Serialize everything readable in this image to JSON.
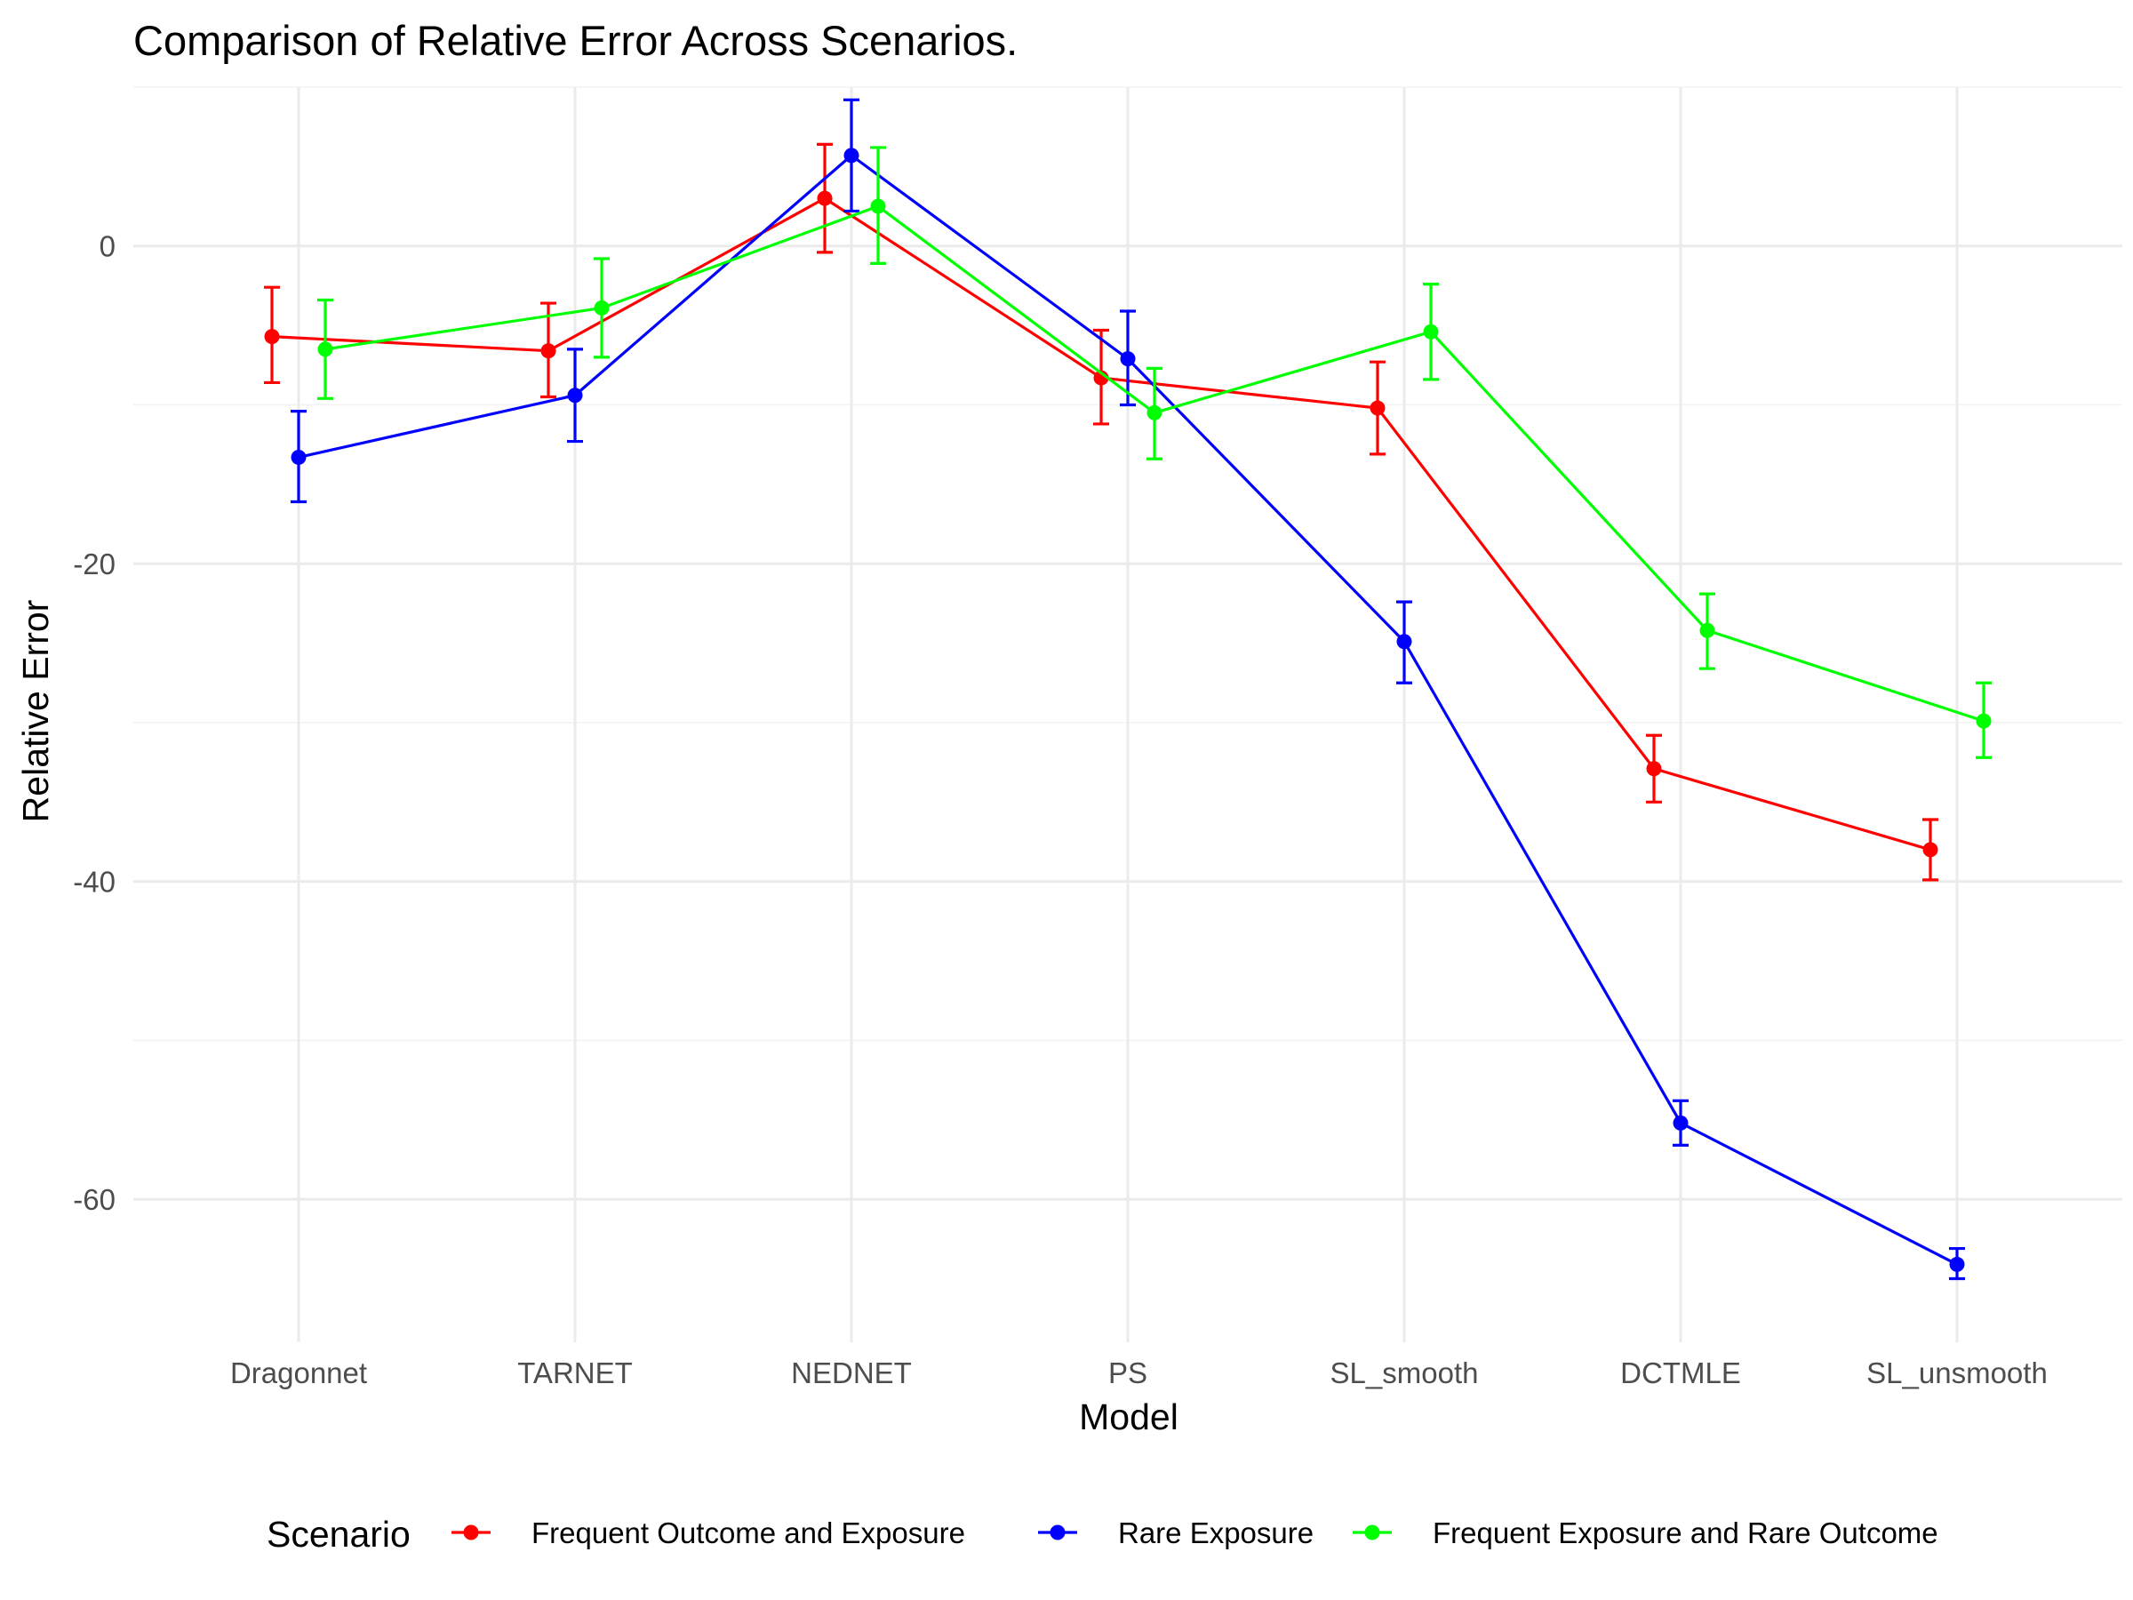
{
  "chart_data": {
    "type": "line",
    "title": "Comparison of Relative Error Across Scenarios.",
    "xlabel": "Model",
    "ylabel": "Relative Error",
    "categories": [
      "Dragonnet",
      "TARNET",
      "NEDNET",
      "PS",
      "SL_smooth",
      "DCTMLE",
      "SL_unsmooth"
    ],
    "ylim": [
      -69,
      10
    ],
    "yticks": [
      0,
      -20,
      -40,
      -60
    ],
    "ytick_labels": [
      "0",
      "-20",
      "-40",
      "-60"
    ],
    "grid": true,
    "legend": {
      "title": "Scenario",
      "position": "bottom"
    },
    "error_bars": true,
    "series": [
      {
        "name": "Frequent Outcome and Exposure",
        "color": "#ff0000",
        "values": [
          -5.7,
          -6.6,
          3.0,
          -8.3,
          -10.2,
          -32.9,
          -38.0
        ],
        "lower": [
          -8.6,
          -9.5,
          -0.4,
          -11.2,
          -13.1,
          -35.0,
          -39.9
        ],
        "upper": [
          -2.6,
          -3.6,
          6.4,
          -5.3,
          -7.3,
          -30.8,
          -36.1
        ]
      },
      {
        "name": "Rare Exposure",
        "color": "#0000ff",
        "values": [
          -13.3,
          -9.4,
          5.7,
          -7.1,
          -24.9,
          -55.2,
          -64.1
        ],
        "lower": [
          -16.1,
          -12.3,
          2.2,
          -10.0,
          -27.5,
          -56.6,
          -65.0
        ],
        "upper": [
          -10.4,
          -6.5,
          9.2,
          -4.1,
          -22.4,
          -53.8,
          -63.1
        ]
      },
      {
        "name": "Frequent Exposure and Rare Outcome",
        "color": "#00ff00",
        "values": [
          -6.5,
          -3.9,
          2.5,
          -10.5,
          -5.4,
          -24.2,
          -29.9
        ],
        "lower": [
          -9.6,
          -7.0,
          -1.1,
          -13.4,
          -8.4,
          -26.6,
          -32.2
        ],
        "upper": [
          -3.4,
          -0.8,
          6.2,
          -7.7,
          -2.4,
          -21.9,
          -27.5
        ]
      }
    ]
  }
}
